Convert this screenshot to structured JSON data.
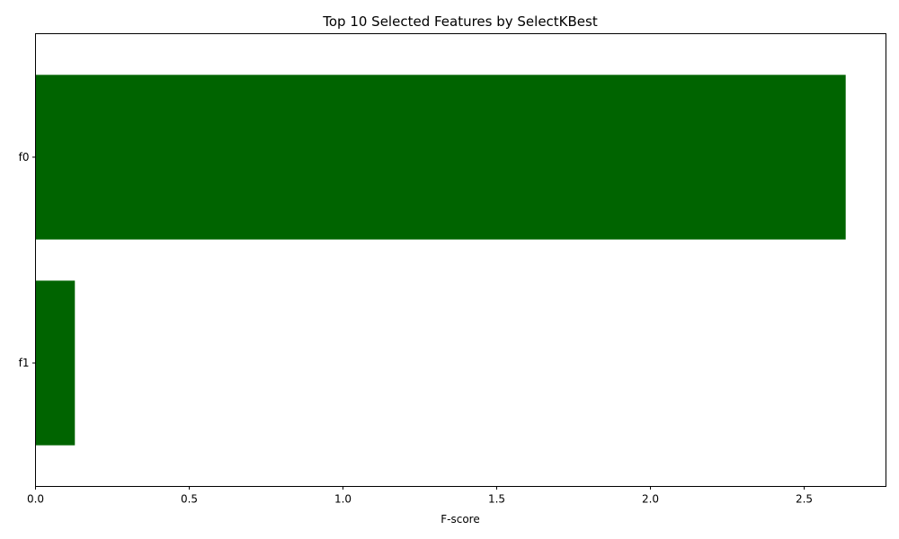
{
  "chart_data": {
    "type": "bar",
    "orientation": "horizontal",
    "title": "Top 10 Selected Features by SelectKBest",
    "xlabel": "F-score",
    "ylabel": "",
    "categories": [
      "f0",
      "f1"
    ],
    "values": [
      2.635,
      0.128
    ],
    "xlim": [
      0,
      2.766
    ],
    "xticks": [
      0.0,
      0.5,
      1.0,
      1.5,
      2.0,
      2.5
    ],
    "xtick_labels": [
      "0.0",
      "0.5",
      "1.0",
      "1.5",
      "2.0",
      "2.5"
    ],
    "bar_color": "#006400",
    "grid": false,
    "legend": "none"
  }
}
